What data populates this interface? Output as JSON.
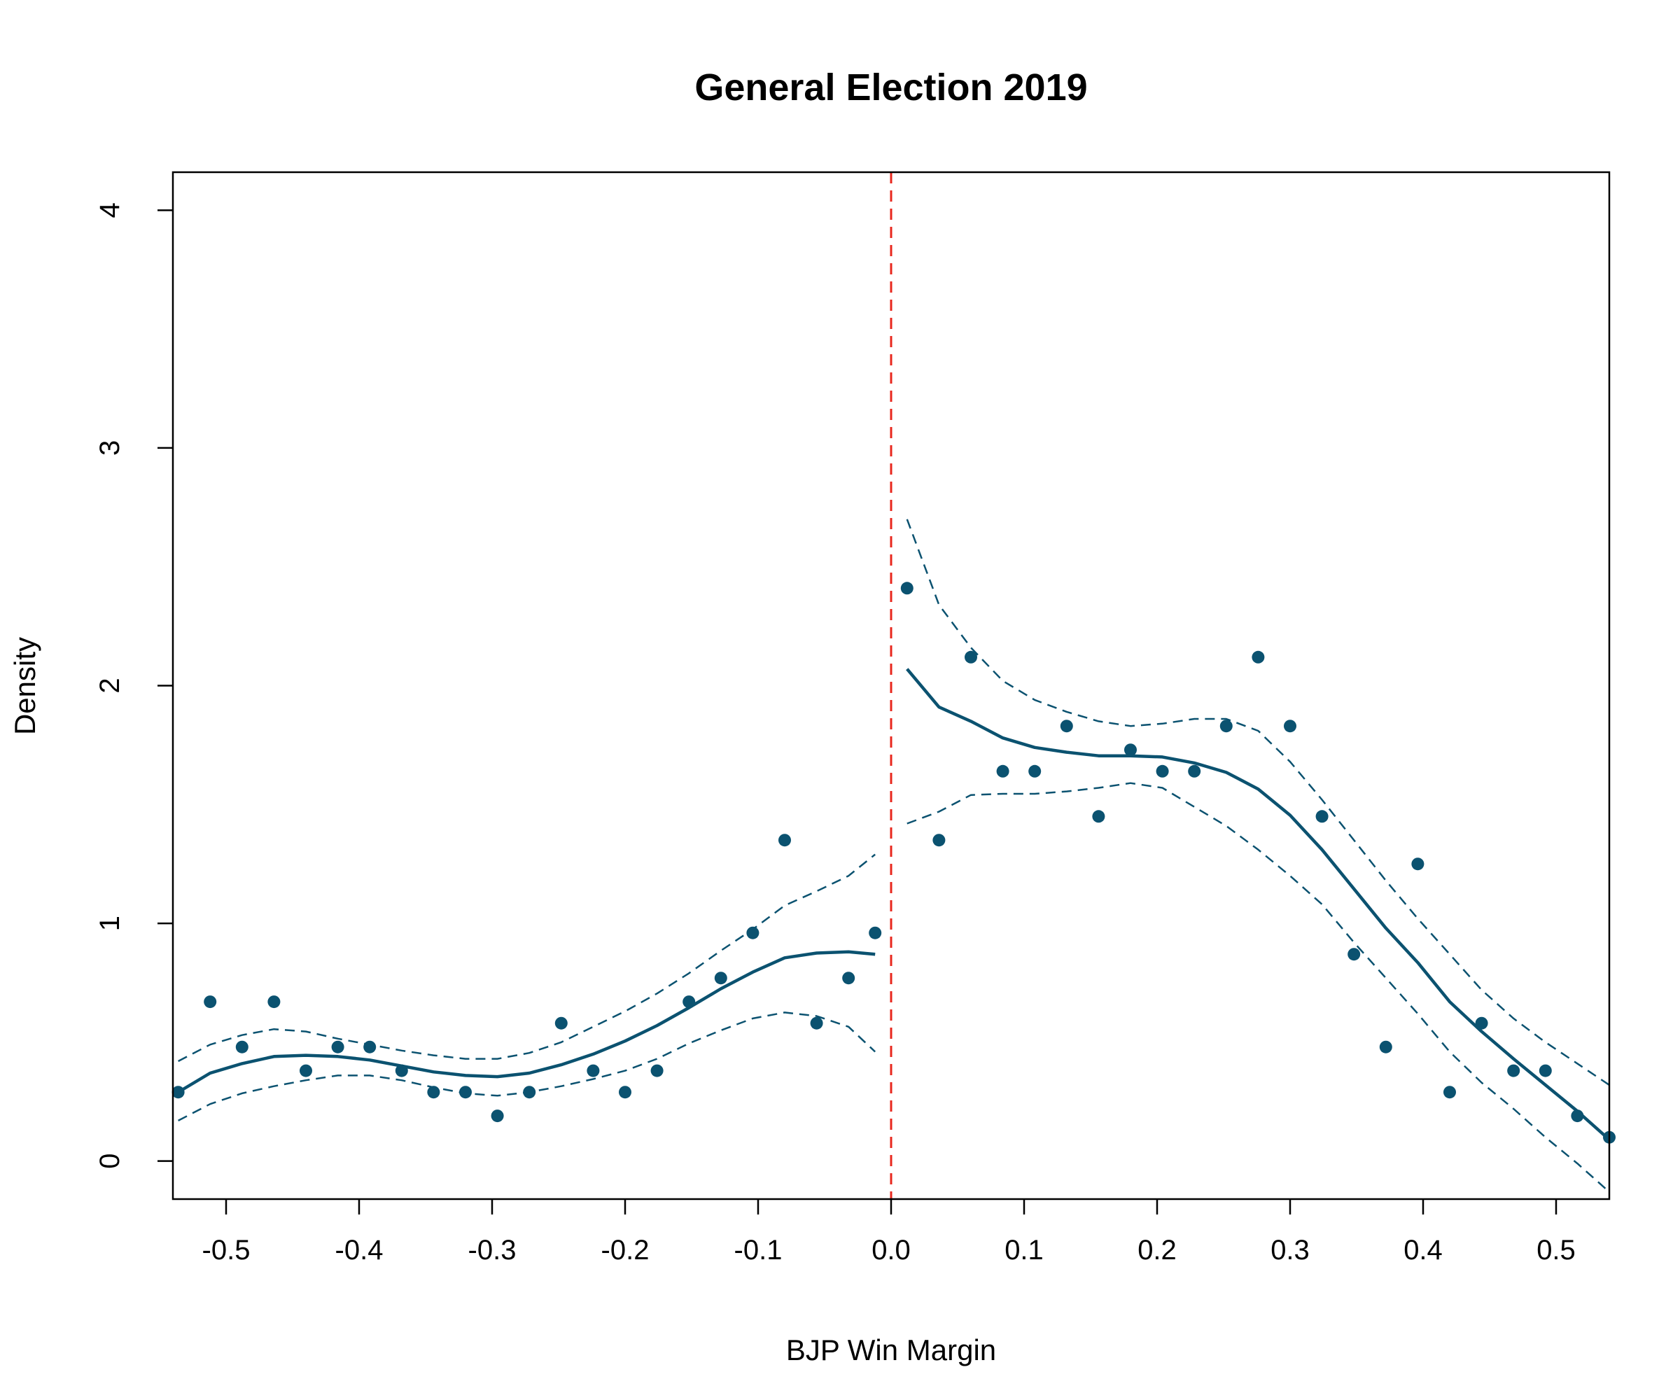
{
  "chart_data": {
    "type": "scatter",
    "title": "General Election 2019",
    "xlabel": "BJP Win Margin",
    "ylabel": "Density",
    "xlim": [
      -0.54,
      0.54
    ],
    "ylim": [
      -0.16,
      4.16
    ],
    "x_ticks": [
      -0.5,
      -0.4,
      -0.3,
      -0.2,
      -0.1,
      0.0,
      0.1,
      0.2,
      0.3,
      0.4,
      0.5
    ],
    "x_tick_labels": [
      "-0.5",
      "-0.4",
      "-0.3",
      "-0.2",
      "-0.1",
      "0.0",
      "0.1",
      "0.2",
      "0.3",
      "0.4",
      "0.5"
    ],
    "y_ticks": [
      0,
      1,
      2,
      3,
      4
    ],
    "y_tick_labels": [
      "0",
      "1",
      "2",
      "3",
      "4"
    ],
    "grid": false,
    "cutoff": 0.0,
    "colors": {
      "series": "#0b5270",
      "cutoff": "#e8271d",
      "axis": "#000000"
    },
    "points": [
      [
        -0.536,
        0.29
      ],
      [
        -0.512,
        0.67
      ],
      [
        -0.488,
        0.48
      ],
      [
        -0.464,
        0.67
      ],
      [
        -0.44,
        0.38
      ],
      [
        -0.416,
        0.48
      ],
      [
        -0.392,
        0.48
      ],
      [
        -0.368,
        0.38
      ],
      [
        -0.344,
        0.29
      ],
      [
        -0.32,
        0.29
      ],
      [
        -0.296,
        0.19
      ],
      [
        -0.272,
        0.29
      ],
      [
        -0.248,
        0.58
      ],
      [
        -0.224,
        0.38
      ],
      [
        -0.2,
        0.29
      ],
      [
        -0.176,
        0.38
      ],
      [
        -0.152,
        0.67
      ],
      [
        -0.128,
        0.77
      ],
      [
        -0.104,
        0.96
      ],
      [
        -0.08,
        1.35
      ],
      [
        -0.056,
        0.58
      ],
      [
        -0.032,
        0.77
      ],
      [
        -0.012,
        0.96
      ],
      [
        0.012,
        2.41
      ],
      [
        0.036,
        1.35
      ],
      [
        0.06,
        2.12
      ],
      [
        0.084,
        1.64
      ],
      [
        0.108,
        1.64
      ],
      [
        0.132,
        1.83
      ],
      [
        0.156,
        1.45
      ],
      [
        0.18,
        1.73
      ],
      [
        0.204,
        1.64
      ],
      [
        0.228,
        1.64
      ],
      [
        0.252,
        1.83
      ],
      [
        0.276,
        2.12
      ],
      [
        0.3,
        1.83
      ],
      [
        0.324,
        1.45
      ],
      [
        0.348,
        0.87
      ],
      [
        0.372,
        0.48
      ],
      [
        0.396,
        1.25
      ],
      [
        0.42,
        0.29
      ],
      [
        0.444,
        0.58
      ],
      [
        0.468,
        0.38
      ],
      [
        0.492,
        0.38
      ],
      [
        0.516,
        0.19
      ],
      [
        0.54,
        0.1
      ]
    ],
    "fit_left": {
      "x": [
        -0.536,
        -0.512,
        -0.488,
        -0.464,
        -0.44,
        -0.416,
        -0.392,
        -0.368,
        -0.344,
        -0.32,
        -0.296,
        -0.272,
        -0.248,
        -0.224,
        -0.2,
        -0.176,
        -0.152,
        -0.128,
        -0.104,
        -0.08,
        -0.056,
        -0.032,
        -0.012
      ],
      "estimate": [
        0.29,
        0.37,
        0.41,
        0.44,
        0.445,
        0.44,
        0.425,
        0.4,
        0.375,
        0.36,
        0.355,
        0.37,
        0.405,
        0.45,
        0.505,
        0.57,
        0.645,
        0.725,
        0.795,
        0.855,
        0.875,
        0.88,
        0.87
      ],
      "upper": [
        0.42,
        0.49,
        0.53,
        0.555,
        0.545,
        0.515,
        0.49,
        0.465,
        0.445,
        0.43,
        0.43,
        0.455,
        0.5,
        0.565,
        0.63,
        0.705,
        0.79,
        0.885,
        0.975,
        1.075,
        1.135,
        1.2,
        1.29
      ],
      "lower": [
        0.17,
        0.24,
        0.285,
        0.315,
        0.34,
        0.36,
        0.36,
        0.34,
        0.31,
        0.285,
        0.275,
        0.29,
        0.315,
        0.345,
        0.38,
        0.43,
        0.495,
        0.55,
        0.6,
        0.625,
        0.61,
        0.565,
        0.46
      ]
    },
    "fit_right": {
      "x": [
        0.012,
        0.036,
        0.06,
        0.084,
        0.108,
        0.132,
        0.156,
        0.18,
        0.204,
        0.228,
        0.252,
        0.276,
        0.3,
        0.324,
        0.348,
        0.372,
        0.396,
        0.42,
        0.444,
        0.468,
        0.492,
        0.516,
        0.54
      ],
      "estimate": [
        2.07,
        1.91,
        1.85,
        1.78,
        1.74,
        1.72,
        1.705,
        1.705,
        1.7,
        1.675,
        1.635,
        1.565,
        1.455,
        1.31,
        1.145,
        0.98,
        0.835,
        0.67,
        0.545,
        0.43,
        0.32,
        0.21,
        0.09
      ],
      "upper": [
        2.7,
        2.34,
        2.16,
        2.02,
        1.94,
        1.89,
        1.85,
        1.83,
        1.84,
        1.86,
        1.86,
        1.81,
        1.68,
        1.52,
        1.35,
        1.18,
        1.02,
        0.87,
        0.72,
        0.6,
        0.5,
        0.41,
        0.32
      ],
      "lower": [
        1.42,
        1.47,
        1.54,
        1.545,
        1.545,
        1.555,
        1.57,
        1.59,
        1.57,
        1.49,
        1.41,
        1.31,
        1.2,
        1.08,
        0.92,
        0.77,
        0.62,
        0.46,
        0.33,
        0.22,
        0.1,
        -0.01,
        -0.13
      ]
    }
  }
}
